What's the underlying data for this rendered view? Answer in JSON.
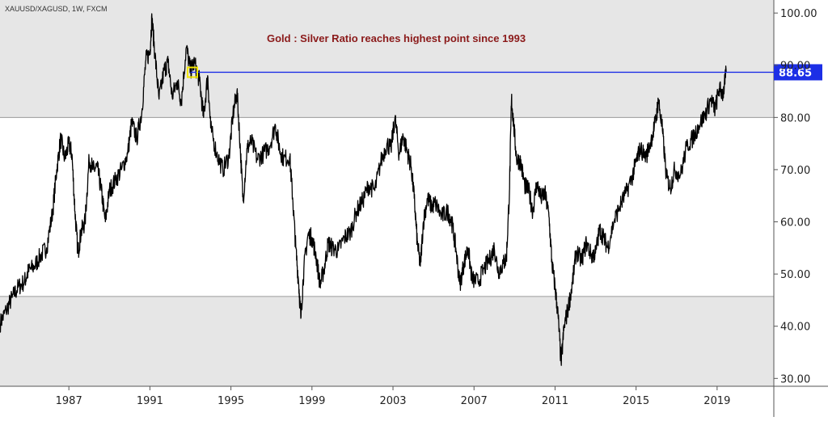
{
  "header": {
    "symbol_label": "XAUUSD/XAGUSD, 1W, FXCM",
    "headline": "Gold : Silver Ratio reaches highest point since 1993"
  },
  "colors": {
    "line": "#000000",
    "band_fill": "#e6e6e6",
    "band_border": "#9a9a9a",
    "level_line": "#1c2fe6",
    "price_tag_bg": "#1c2fe6",
    "headline": "#8b1a1a",
    "marker": "#f2e600"
  },
  "chart_data": {
    "type": "line",
    "title": "Gold : Silver Ratio reaches highest point since 1993",
    "series_name": "XAUUSD/XAGUSD, 1W, FXCM",
    "x_range": [
      1983.6,
      2021.8
    ],
    "y_range": [
      28.5,
      102.5
    ],
    "y_ticks": [
      "100.00",
      "90.00",
      "80.00",
      "70.00",
      "60.00",
      "50.00",
      "40.00",
      "30.00"
    ],
    "y_tick_values": [
      100,
      90,
      80,
      70,
      60,
      50,
      40,
      30
    ],
    "x_ticks": [
      "1987",
      "1991",
      "1995",
      "1999",
      "2003",
      "2007",
      "2011",
      "2015",
      "2019"
    ],
    "x_tick_values": [
      1987,
      1991,
      1995,
      1999,
      2003,
      2007,
      2011,
      2015,
      2019
    ],
    "shaded_zones": [
      {
        "from": 80,
        "to": 102.5
      },
      {
        "from": 28.5,
        "to": 45.7
      }
    ],
    "level": {
      "value": 88.65,
      "from_x": 1993.0,
      "label": "88.65"
    },
    "marker": {
      "x": 1993.1,
      "y": 88.65
    },
    "points": [
      [
        1983.6,
        40.5
      ],
      [
        1983.9,
        43.0
      ],
      [
        1984.2,
        45.5
      ],
      [
        1984.5,
        47.5
      ],
      [
        1984.8,
        48.5
      ],
      [
        1985.0,
        50.5
      ],
      [
        1985.3,
        51.5
      ],
      [
        1985.6,
        53.5
      ],
      [
        1985.9,
        55.0
      ],
      [
        1986.2,
        62.0
      ],
      [
        1986.4,
        70.0
      ],
      [
        1986.6,
        76.0
      ],
      [
        1986.8,
        72.0
      ],
      [
        1987.0,
        75.0
      ],
      [
        1987.15,
        73.0
      ],
      [
        1987.3,
        62.0
      ],
      [
        1987.45,
        54.0
      ],
      [
        1987.6,
        58.0
      ],
      [
        1987.8,
        60.0
      ],
      [
        1988.0,
        72.0
      ],
      [
        1988.2,
        70.0
      ],
      [
        1988.4,
        70.5
      ],
      [
        1988.6,
        66.0
      ],
      [
        1988.8,
        60.0
      ],
      [
        1989.0,
        66.0
      ],
      [
        1989.3,
        68.0
      ],
      [
        1989.6,
        70.0
      ],
      [
        1989.9,
        73.0
      ],
      [
        1990.1,
        79.0
      ],
      [
        1990.35,
        76.0
      ],
      [
        1990.6,
        81.0
      ],
      [
        1990.8,
        91.0
      ],
      [
        1991.0,
        92.5
      ],
      [
        1991.1,
        99.0
      ],
      [
        1991.25,
        92.0
      ],
      [
        1991.45,
        83.5
      ],
      [
        1991.7,
        89.0
      ],
      [
        1991.9,
        90.5
      ],
      [
        1992.1,
        84.0
      ],
      [
        1992.35,
        87.0
      ],
      [
        1992.55,
        83.0
      ],
      [
        1992.8,
        93.5
      ],
      [
        1993.0,
        89.0
      ],
      [
        1993.2,
        90.5
      ],
      [
        1993.45,
        87.0
      ],
      [
        1993.65,
        80.0
      ],
      [
        1993.85,
        88.0
      ],
      [
        1994.0,
        78.0
      ],
      [
        1994.3,
        73.0
      ],
      [
        1994.6,
        70.0
      ],
      [
        1994.9,
        72.5
      ],
      [
        1995.1,
        80.5
      ],
      [
        1995.3,
        85.0
      ],
      [
        1995.45,
        75.0
      ],
      [
        1995.6,
        64.0
      ],
      [
        1995.8,
        74.0
      ],
      [
        1996.0,
        75.5
      ],
      [
        1996.3,
        72.0
      ],
      [
        1996.6,
        73.0
      ],
      [
        1996.9,
        74.5
      ],
      [
        1997.2,
        78.5
      ],
      [
        1997.4,
        74.0
      ],
      [
        1997.6,
        72.0
      ],
      [
        1997.9,
        72.5
      ],
      [
        1998.05,
        64.5
      ],
      [
        1998.2,
        55.0
      ],
      [
        1998.35,
        48.0
      ],
      [
        1998.45,
        41.5
      ],
      [
        1998.6,
        51.0
      ],
      [
        1998.8,
        57.5
      ],
      [
        1999.0,
        57.0
      ],
      [
        1999.2,
        53.5
      ],
      [
        1999.4,
        48.0
      ],
      [
        1999.6,
        51.0
      ],
      [
        1999.8,
        56.0
      ],
      [
        2000.0,
        55.0
      ],
      [
        2000.3,
        54.5
      ],
      [
        2000.6,
        57.0
      ],
      [
        2000.9,
        58.0
      ],
      [
        2001.2,
        62.0
      ],
      [
        2001.5,
        64.0
      ],
      [
        2001.8,
        67.0
      ],
      [
        2002.1,
        66.0
      ],
      [
        2002.4,
        71.5
      ],
      [
        2002.7,
        75.0
      ],
      [
        2002.9,
        74.0
      ],
      [
        2003.1,
        80.0
      ],
      [
        2003.3,
        73.0
      ],
      [
        2003.5,
        76.5
      ],
      [
        2003.7,
        73.5
      ],
      [
        2003.9,
        70.5
      ],
      [
        2004.05,
        64.5
      ],
      [
        2004.2,
        56.0
      ],
      [
        2004.35,
        51.5
      ],
      [
        2004.5,
        60.0
      ],
      [
        2004.7,
        64.5
      ],
      [
        2004.9,
        63.0
      ],
      [
        2005.1,
        63.5
      ],
      [
        2005.4,
        61.0
      ],
      [
        2005.7,
        62.0
      ],
      [
        2005.9,
        60.0
      ],
      [
        2006.1,
        55.0
      ],
      [
        2006.3,
        48.0
      ],
      [
        2006.5,
        52.0
      ],
      [
        2006.7,
        55.0
      ],
      [
        2006.9,
        49.0
      ],
      [
        2007.2,
        48.5
      ],
      [
        2007.5,
        51.0
      ],
      [
        2007.8,
        53.0
      ],
      [
        2008.0,
        55.0
      ],
      [
        2008.2,
        50.5
      ],
      [
        2008.45,
        52.0
      ],
      [
        2008.6,
        53.0
      ],
      [
        2008.75,
        66.0
      ],
      [
        2008.85,
        83.5
      ],
      [
        2008.95,
        79.0
      ],
      [
        2009.1,
        72.0
      ],
      [
        2009.3,
        71.5
      ],
      [
        2009.5,
        67.0
      ],
      [
        2009.7,
        66.0
      ],
      [
        2009.9,
        62.0
      ],
      [
        2010.1,
        67.5
      ],
      [
        2010.3,
        64.5
      ],
      [
        2010.5,
        65.5
      ],
      [
        2010.7,
        61.0
      ],
      [
        2010.85,
        52.0
      ],
      [
        2011.0,
        47.5
      ],
      [
        2011.15,
        42.0
      ],
      [
        2011.3,
        33.0
      ],
      [
        2011.45,
        40.0
      ],
      [
        2011.65,
        43.5
      ],
      [
        2011.85,
        48.0
      ],
      [
        2012.05,
        54.5
      ],
      [
        2012.3,
        52.5
      ],
      [
        2012.55,
        56.0
      ],
      [
        2012.8,
        53.5
      ],
      [
        2013.0,
        54.0
      ],
      [
        2013.2,
        58.5
      ],
      [
        2013.4,
        57.0
      ],
      [
        2013.6,
        55.0
      ],
      [
        2013.9,
        60.0
      ],
      [
        2014.2,
        63.0
      ],
      [
        2014.5,
        65.5
      ],
      [
        2014.8,
        68.5
      ],
      [
        2015.0,
        71.5
      ],
      [
        2015.2,
        74.0
      ],
      [
        2015.5,
        72.5
      ],
      [
        2015.8,
        76.5
      ],
      [
        2016.0,
        80.0
      ],
      [
        2016.1,
        83.5
      ],
      [
        2016.3,
        77.5
      ],
      [
        2016.5,
        68.5
      ],
      [
        2016.7,
        66.5
      ],
      [
        2016.9,
        70.0
      ],
      [
        2017.2,
        69.0
      ],
      [
        2017.5,
        74.5
      ],
      [
        2017.8,
        76.0
      ],
      [
        2018.1,
        78.5
      ],
      [
        2018.4,
        80.5
      ],
      [
        2018.7,
        83.5
      ],
      [
        2018.9,
        81.5
      ],
      [
        2019.1,
        85.5
      ],
      [
        2019.3,
        84.5
      ],
      [
        2019.45,
        88.65
      ]
    ]
  }
}
